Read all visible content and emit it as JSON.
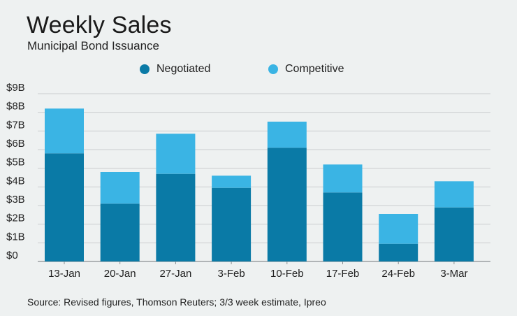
{
  "title": "Weekly Sales",
  "subtitle": "Municipal Bond Issuance",
  "source": "Source: Revised figures, Thomson Reuters; 3/3 week estimate, Ipreo",
  "chart_data": {
    "type": "bar",
    "stacked": true,
    "categories": [
      "13-Jan",
      "20-Jan",
      "27-Jan",
      "3-Feb",
      "10-Feb",
      "17-Feb",
      "24-Feb",
      "3-Mar"
    ],
    "series": [
      {
        "name": "Negotiated",
        "color": "#0a7aa6",
        "values": [
          5.8,
          3.1,
          4.7,
          3.95,
          6.1,
          3.7,
          0.95,
          2.9
        ]
      },
      {
        "name": "Competitive",
        "color": "#3ab4e4",
        "values": [
          2.4,
          1.7,
          2.15,
          0.65,
          1.4,
          1.5,
          1.6,
          1.4
        ]
      }
    ],
    "y_ticks": [
      "$0",
      "$1B",
      "$2B",
      "$3B",
      "$4B",
      "$5B",
      "$6B",
      "$7B",
      "$8B",
      "$9B"
    ],
    "ylim": [
      0,
      9
    ],
    "grid": true,
    "legend_position": "top"
  }
}
